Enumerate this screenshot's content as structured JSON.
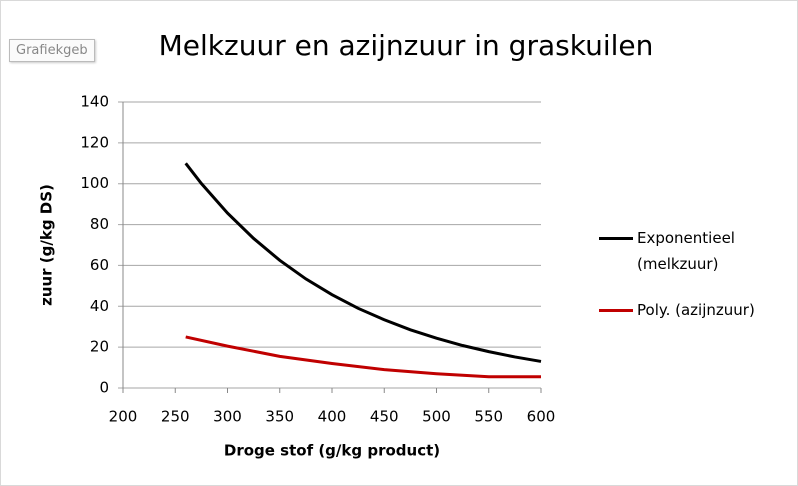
{
  "tooltip": "Grafiekgeb",
  "chart_data": {
    "type": "line",
    "title": "Melkzuur en azijnzuur in graskuilen",
    "xlabel": "Droge stof (g/kg product)",
    "ylabel": "zuur (g/kg DS)",
    "xlim": [
      200,
      600
    ],
    "xticks": [
      200,
      250,
      300,
      350,
      400,
      450,
      500,
      550,
      600
    ],
    "ylim": [
      0,
      140
    ],
    "yticks": [
      0,
      20,
      40,
      60,
      80,
      100,
      120,
      140
    ],
    "grid": true,
    "series": [
      {
        "name": "Exponentieel (melkzuur)",
        "color": "#000000",
        "x": [
          260,
          275,
          300,
          325,
          350,
          375,
          400,
          425,
          450,
          475,
          500,
          525,
          550,
          575,
          600
        ],
        "values": [
          110,
          100.1,
          85.6,
          73.2,
          62.5,
          53.4,
          45.7,
          39,
          33.4,
          28.5,
          24.4,
          20.8,
          17.8,
          15.2,
          13
        ]
      },
      {
        "name": "Poly. (azijnzuur)",
        "color": "#c00000",
        "x": [
          260,
          300,
          350,
          400,
          450,
          500,
          550,
          600
        ],
        "values": [
          25,
          20.5,
          15.5,
          12,
          9,
          7,
          5.5,
          5.5
        ]
      }
    ]
  }
}
